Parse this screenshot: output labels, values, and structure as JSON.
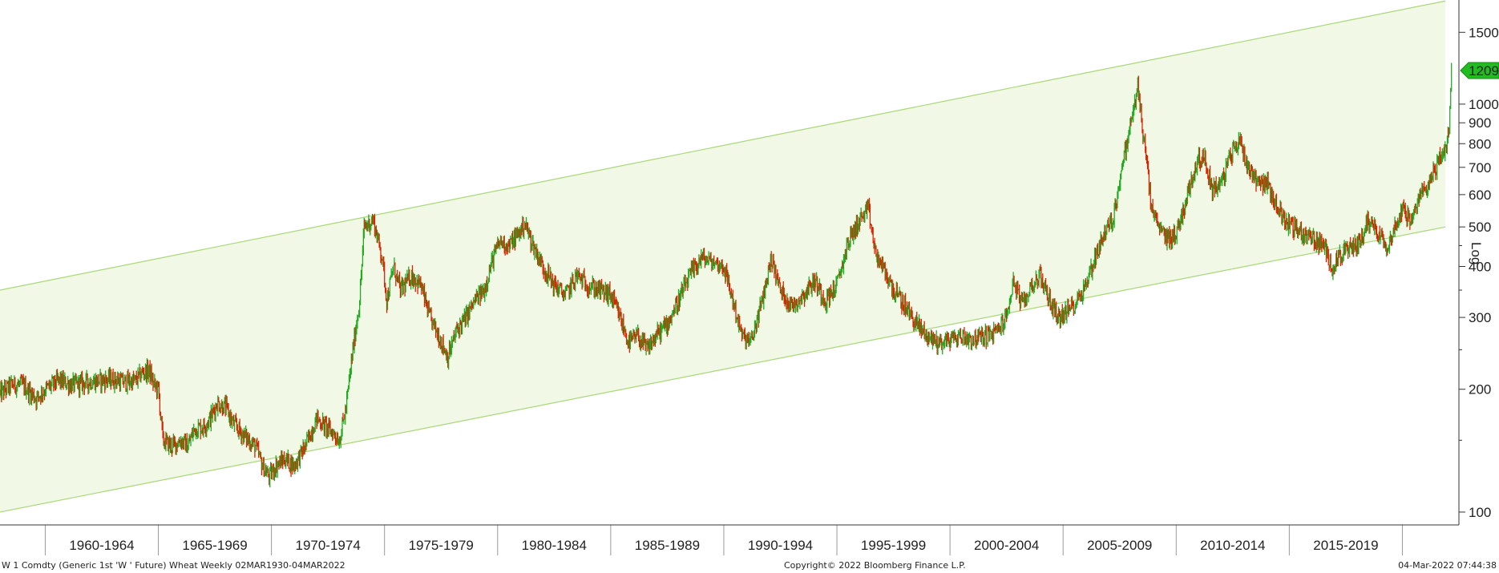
{
  "footer": {
    "security": "W 1 Comdty (Generic 1st 'W ' Future) Wheat  Weekly 02MAR1930-04MAR2022",
    "copyright": "Copyright© 2022 Bloomberg Finance L.P.",
    "timestamp": "04-Mar-2022 07:44:38"
  },
  "chart_data": {
    "type": "candlestick",
    "title": "",
    "scale": "log",
    "scale_label": "Log",
    "ylim": [
      93,
      1800
    ],
    "xlim": [
      1958.0,
      2022.5
    ],
    "y_ticks": [
      100,
      200,
      300,
      400,
      500,
      600,
      700,
      800,
      900,
      1000,
      1500
    ],
    "y_tick_labels": [
      "100",
      "200",
      "300",
      "400",
      "500",
      "600",
      "700",
      "800",
      "900",
      "1000",
      "1500"
    ],
    "x_periods": [
      {
        "label": "1960-1964",
        "start": 1960,
        "end": 1965
      },
      {
        "label": "1965-1969",
        "start": 1965,
        "end": 1970
      },
      {
        "label": "1970-1974",
        "start": 1970,
        "end": 1975
      },
      {
        "label": "1975-1979",
        "start": 1975,
        "end": 1980
      },
      {
        "label": "1980-1984",
        "start": 1980,
        "end": 1985
      },
      {
        "label": "1985-1989",
        "start": 1985,
        "end": 1990
      },
      {
        "label": "1990-1994",
        "start": 1990,
        "end": 1995
      },
      {
        "label": "1995-1999",
        "start": 1995,
        "end": 2000
      },
      {
        "label": "2000-2004",
        "start": 2000,
        "end": 2005
      },
      {
        "label": "2005-2009",
        "start": 2005,
        "end": 2010
      },
      {
        "label": "2010-2014",
        "start": 2010,
        "end": 2015
      },
      {
        "label": "2015-2019",
        "start": 2015,
        "end": 2020
      }
    ],
    "last_price": 1209,
    "last_price_label": "1209",
    "colors": {
      "up": "#22aa22",
      "down": "#dd2200",
      "channel_fill": "#f1f8e5",
      "channel_line": "#a8d878",
      "badge": "#22bb22"
    },
    "channel": {
      "upper": [
        {
          "x": 1958.0,
          "y": 350
        },
        {
          "x": 2021.9,
          "y": 1790
        }
      ],
      "lower": [
        {
          "x": 1958.0,
          "y": 100
        },
        {
          "x": 2021.9,
          "y": 500
        }
      ]
    },
    "series": [
      {
        "values": [
          [
            1958.0,
            195
          ],
          [
            1958.5,
            205
          ],
          [
            1959.0,
            205
          ],
          [
            1959.6,
            190
          ],
          [
            1960.0,
            200
          ],
          [
            1960.6,
            210
          ],
          [
            1961.2,
            205
          ],
          [
            1961.8,
            208
          ],
          [
            1962.4,
            210
          ],
          [
            1963.0,
            212
          ],
          [
            1963.5,
            208
          ],
          [
            1964.0,
            210
          ],
          [
            1964.3,
            220
          ],
          [
            1964.6,
            222
          ],
          [
            1964.8,
            205
          ],
          [
            1965.0,
            200
          ],
          [
            1965.2,
            150
          ],
          [
            1965.6,
            145
          ],
          [
            1966.0,
            150
          ],
          [
            1966.3,
            145
          ],
          [
            1966.6,
            160
          ],
          [
            1967.0,
            162
          ],
          [
            1967.3,
            170
          ],
          [
            1967.6,
            185
          ],
          [
            1968.0,
            180
          ],
          [
            1968.3,
            165
          ],
          [
            1968.6,
            158
          ],
          [
            1969.0,
            150
          ],
          [
            1969.3,
            145
          ],
          [
            1969.6,
            130
          ],
          [
            1969.9,
            122
          ],
          [
            1970.2,
            130
          ],
          [
            1970.6,
            135
          ],
          [
            1971.0,
            130
          ],
          [
            1971.5,
            145
          ],
          [
            1972.0,
            170
          ],
          [
            1972.5,
            160
          ],
          [
            1972.8,
            155
          ],
          [
            1973.0,
            150
          ],
          [
            1973.3,
            180
          ],
          [
            1973.6,
            250
          ],
          [
            1973.9,
            330
          ],
          [
            1974.1,
            500
          ],
          [
            1974.5,
            520
          ],
          [
            1974.9,
            420
          ],
          [
            1975.1,
            330
          ],
          [
            1975.4,
            400
          ],
          [
            1975.7,
            350
          ],
          [
            1976.2,
            380
          ],
          [
            1976.6,
            360
          ],
          [
            1977.0,
            300
          ],
          [
            1977.4,
            270
          ],
          [
            1977.8,
            240
          ],
          [
            1978.2,
            280
          ],
          [
            1978.6,
            300
          ],
          [
            1979.0,
            330
          ],
          [
            1979.4,
            350
          ],
          [
            1979.8,
            420
          ],
          [
            1980.1,
            460
          ],
          [
            1980.5,
            450
          ],
          [
            1980.9,
            480
          ],
          [
            1981.2,
            510
          ],
          [
            1981.5,
            460
          ],
          [
            1982.0,
            400
          ],
          [
            1982.5,
            360
          ],
          [
            1983.0,
            340
          ],
          [
            1983.5,
            380
          ],
          [
            1984.0,
            360
          ],
          [
            1984.5,
            350
          ],
          [
            1985.0,
            340
          ],
          [
            1985.4,
            300
          ],
          [
            1985.8,
            260
          ],
          [
            1986.2,
            270
          ],
          [
            1986.6,
            250
          ],
          [
            1987.0,
            270
          ],
          [
            1987.5,
            290
          ],
          [
            1988.0,
            330
          ],
          [
            1988.5,
            380
          ],
          [
            1989.0,
            420
          ],
          [
            1989.5,
            410
          ],
          [
            1990.0,
            400
          ],
          [
            1990.4,
            330
          ],
          [
            1990.8,
            270
          ],
          [
            1991.2,
            260
          ],
          [
            1991.7,
            330
          ],
          [
            1992.1,
            420
          ],
          [
            1992.5,
            350
          ],
          [
            1993.0,
            320
          ],
          [
            1993.5,
            340
          ],
          [
            1994.0,
            370
          ],
          [
            1994.5,
            330
          ],
          [
            1995.0,
            360
          ],
          [
            1995.5,
            460
          ],
          [
            1996.0,
            520
          ],
          [
            1996.4,
            550
          ],
          [
            1996.7,
            430
          ],
          [
            1997.0,
            400
          ],
          [
            1997.5,
            350
          ],
          [
            1998.0,
            320
          ],
          [
            1998.5,
            290
          ],
          [
            1999.0,
            270
          ],
          [
            1999.5,
            260
          ],
          [
            2000.0,
            265
          ],
          [
            2000.5,
            270
          ],
          [
            2001.0,
            265
          ],
          [
            2001.5,
            270
          ],
          [
            2002.0,
            275
          ],
          [
            2002.5,
            300
          ],
          [
            2002.8,
            370
          ],
          [
            2003.2,
            320
          ],
          [
            2003.6,
            360
          ],
          [
            2004.0,
            380
          ],
          [
            2004.4,
            330
          ],
          [
            2004.8,
            300
          ],
          [
            2005.2,
            310
          ],
          [
            2005.6,
            330
          ],
          [
            2006.0,
            360
          ],
          [
            2006.4,
            420
          ],
          [
            2006.8,
            480
          ],
          [
            2007.2,
            520
          ],
          [
            2007.6,
            700
          ],
          [
            2008.0,
            900
          ],
          [
            2008.3,
            1100
          ],
          [
            2008.6,
            800
          ],
          [
            2008.9,
            560
          ],
          [
            2009.2,
            500
          ],
          [
            2009.6,
            470
          ],
          [
            2010.0,
            480
          ],
          [
            2010.5,
            600
          ],
          [
            2010.9,
            720
          ],
          [
            2011.2,
            750
          ],
          [
            2011.6,
            620
          ],
          [
            2012.0,
            640
          ],
          [
            2012.4,
            750
          ],
          [
            2012.8,
            820
          ],
          [
            2013.2,
            700
          ],
          [
            2013.6,
            650
          ],
          [
            2014.0,
            640
          ],
          [
            2014.4,
            570
          ],
          [
            2014.8,
            520
          ],
          [
            2015.2,
            500
          ],
          [
            2015.6,
            480
          ],
          [
            2016.0,
            470
          ],
          [
            2016.5,
            450
          ],
          [
            2016.9,
            400
          ],
          [
            2017.3,
            430
          ],
          [
            2017.7,
            440
          ],
          [
            2018.1,
            460
          ],
          [
            2018.5,
            520
          ],
          [
            2018.9,
            490
          ],
          [
            2019.3,
            450
          ],
          [
            2019.7,
            500
          ],
          [
            2020.0,
            560
          ],
          [
            2020.4,
            510
          ],
          [
            2020.8,
            600
          ],
          [
            2021.2,
            650
          ],
          [
            2021.5,
            700
          ],
          [
            2021.8,
            770
          ],
          [
            2021.95,
            790
          ],
          [
            2022.05,
            840
          ],
          [
            2022.1,
            980
          ],
          [
            2022.17,
            1209
          ]
        ]
      }
    ]
  }
}
